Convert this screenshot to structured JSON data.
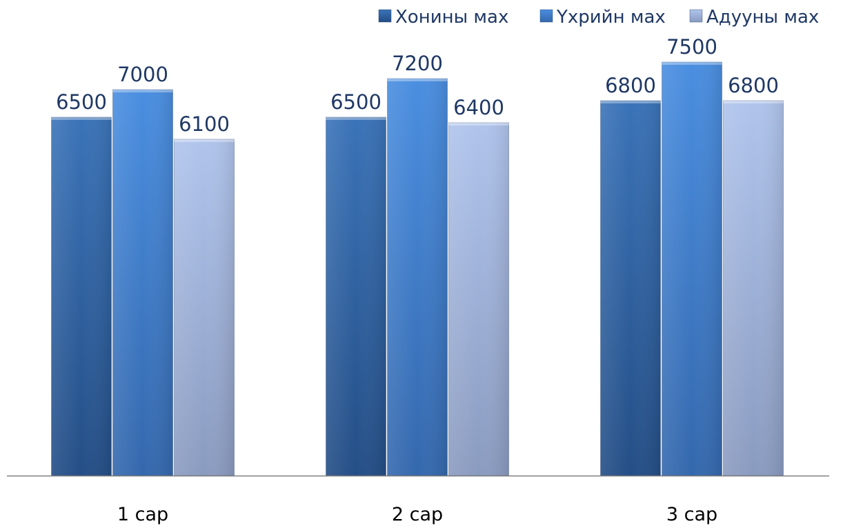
{
  "chart_data": {
    "type": "bar",
    "categories": [
      "1 сар",
      "2 сар",
      "3 сар"
    ],
    "series": [
      {
        "name": "Хонины мах",
        "values": [
          6500,
          6500,
          6800
        ],
        "color": "#2f5f9e"
      },
      {
        "name": "Үхрийн мах",
        "values": [
          7000,
          7200,
          7500
        ],
        "color": "#3f7fd0"
      },
      {
        "name": "Адууны мах",
        "values": [
          6100,
          6400,
          6800
        ],
        "color": "#9aacd2"
      }
    ],
    "title": "",
    "xlabel": "",
    "ylabel": "",
    "ylim": [
      0,
      8000
    ],
    "grid": false,
    "legend_position": "top-right",
    "data_labels": true
  }
}
